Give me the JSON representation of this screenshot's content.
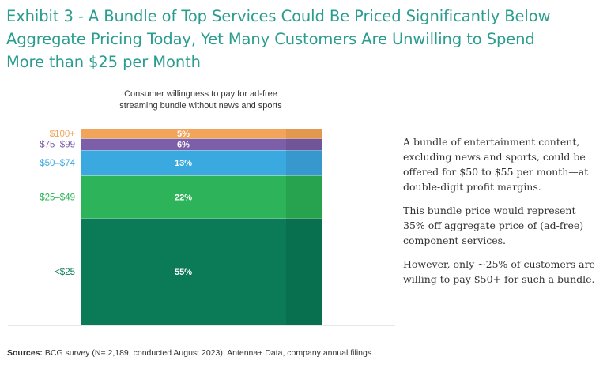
{
  "title": {
    "line1": "Exhibit 3 - A Bundle of Top Services Could Be Priced Significantly Below",
    "line2": "Aggregate Pricing Today, Yet Many Customers Are Unwilling to Spend",
    "line3": "More than $25 per Month"
  },
  "chart_data": {
    "type": "bar",
    "stacked": true,
    "title_lines": [
      "Consumer willingness to pay for ad-free",
      "streaming bundle without news and sports"
    ],
    "categories": [
      "<$25",
      "$25–$49",
      "$50–$74",
      "$75–$99",
      "$100+"
    ],
    "values": [
      55,
      22,
      13,
      6,
      5
    ],
    "value_labels": [
      "55%",
      "22%",
      "13%",
      "6%",
      "5%"
    ],
    "colors": [
      "#0b7a57",
      "#2db35a",
      "#3aa9e0",
      "#7d5ea8",
      "#f0a55a"
    ],
    "shade_colors": [
      "#09704f",
      "#27a34f",
      "#3698cc",
      "#725598",
      "#e39850"
    ],
    "label_colors": [
      "#0b7a57",
      "#2db35a",
      "#3aa9e0",
      "#7d5ea8",
      "#f0a55a"
    ],
    "unit": "%"
  },
  "notes": [
    "A bundle of entertainment content, excluding news and sports, could be offered for $50 to $55 per month—at double-digit profit margins.",
    "This bundle price would represent 35% off aggregate price of (ad-free) component services.",
    "However, only ~25% of customers are willing to pay $50+ for such a bundle."
  ],
  "sources": {
    "label": "Sources:",
    "text": " BCG survey (N= 2,189, conducted August 2023); Antenna+ Data, company annual filings."
  }
}
